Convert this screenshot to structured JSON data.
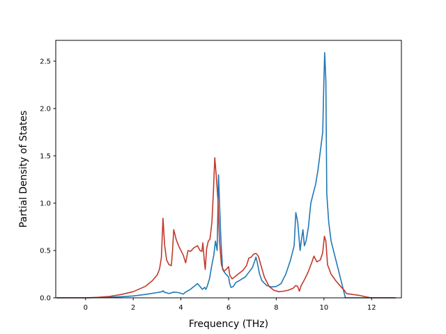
{
  "chart_data": {
    "type": "line",
    "xlabel": "Frequency (THz)",
    "ylabel": "Partial Density of States",
    "xlim": [
      -1.25,
      13.25
    ],
    "ylim": [
      0,
      2.72
    ],
    "xticks": [
      0,
      2,
      4,
      6,
      8,
      10,
      12
    ],
    "xtick_labels": [
      "0",
      "2",
      "4",
      "6",
      "8",
      "10",
      "12"
    ],
    "yticks": [
      0.0,
      0.5,
      1.0,
      1.5,
      2.0,
      2.5
    ],
    "ytick_labels": [
      "0.0",
      "0.5",
      "1.0",
      "1.5",
      "2.0",
      "2.5"
    ],
    "grid": false,
    "legend": "none",
    "series": [
      {
        "color": "#1f77b4",
        "points": [
          [
            -1.2,
            0.0
          ],
          [
            0.0,
            0.0
          ],
          [
            0.5,
            0.002
          ],
          [
            1.0,
            0.006
          ],
          [
            1.5,
            0.012
          ],
          [
            2.0,
            0.02
          ],
          [
            2.5,
            0.035
          ],
          [
            3.0,
            0.055
          ],
          [
            3.2,
            0.065
          ],
          [
            3.25,
            0.075
          ],
          [
            3.3,
            0.06
          ],
          [
            3.5,
            0.045
          ],
          [
            3.7,
            0.06
          ],
          [
            3.9,
            0.055
          ],
          [
            4.1,
            0.04
          ],
          [
            4.2,
            0.06
          ],
          [
            4.4,
            0.09
          ],
          [
            4.6,
            0.13
          ],
          [
            4.7,
            0.15
          ],
          [
            4.8,
            0.12
          ],
          [
            4.9,
            0.09
          ],
          [
            5.0,
            0.11
          ],
          [
            5.05,
            0.09
          ],
          [
            5.1,
            0.12
          ],
          [
            5.2,
            0.2
          ],
          [
            5.3,
            0.35
          ],
          [
            5.38,
            0.45
          ],
          [
            5.45,
            0.6
          ],
          [
            5.52,
            0.5
          ],
          [
            5.58,
            1.3
          ],
          [
            5.62,
            1.0
          ],
          [
            5.68,
            0.6
          ],
          [
            5.75,
            0.3
          ],
          [
            5.85,
            0.26
          ],
          [
            6.0,
            0.22
          ],
          [
            6.05,
            0.15
          ],
          [
            6.1,
            0.11
          ],
          [
            6.2,
            0.12
          ],
          [
            6.3,
            0.16
          ],
          [
            6.5,
            0.19
          ],
          [
            6.7,
            0.22
          ],
          [
            6.85,
            0.27
          ],
          [
            7.0,
            0.32
          ],
          [
            7.1,
            0.39
          ],
          [
            7.15,
            0.43
          ],
          [
            7.2,
            0.38
          ],
          [
            7.3,
            0.25
          ],
          [
            7.4,
            0.18
          ],
          [
            7.6,
            0.13
          ],
          [
            7.8,
            0.115
          ],
          [
            8.0,
            0.12
          ],
          [
            8.2,
            0.15
          ],
          [
            8.4,
            0.25
          ],
          [
            8.6,
            0.4
          ],
          [
            8.75,
            0.55
          ],
          [
            8.82,
            0.9
          ],
          [
            8.9,
            0.8
          ],
          [
            9.0,
            0.5
          ],
          [
            9.05,
            0.6
          ],
          [
            9.12,
            0.72
          ],
          [
            9.18,
            0.55
          ],
          [
            9.25,
            0.6
          ],
          [
            9.35,
            0.75
          ],
          [
            9.45,
            1.0
          ],
          [
            9.55,
            1.1
          ],
          [
            9.65,
            1.2
          ],
          [
            9.75,
            1.35
          ],
          [
            9.85,
            1.55
          ],
          [
            9.95,
            1.75
          ],
          [
            10.0,
            2.3
          ],
          [
            10.03,
            2.59
          ],
          [
            10.08,
            2.3
          ],
          [
            10.12,
            1.1
          ],
          [
            10.2,
            0.8
          ],
          [
            10.3,
            0.6
          ],
          [
            10.45,
            0.45
          ],
          [
            10.6,
            0.3
          ],
          [
            10.75,
            0.15
          ],
          [
            10.85,
            0.05
          ],
          [
            10.9,
            0.0
          ],
          [
            13.0,
            0.0
          ]
        ]
      },
      {
        "color": "#c0392b",
        "points": [
          [
            -1.2,
            0.0
          ],
          [
            0.0,
            0.0
          ],
          [
            0.5,
            0.005
          ],
          [
            1.0,
            0.015
          ],
          [
            1.5,
            0.035
          ],
          [
            2.0,
            0.065
          ],
          [
            2.5,
            0.12
          ],
          [
            2.8,
            0.18
          ],
          [
            3.0,
            0.24
          ],
          [
            3.1,
            0.3
          ],
          [
            3.18,
            0.42
          ],
          [
            3.25,
            0.84
          ],
          [
            3.32,
            0.55
          ],
          [
            3.4,
            0.4
          ],
          [
            3.5,
            0.35
          ],
          [
            3.6,
            0.34
          ],
          [
            3.65,
            0.5
          ],
          [
            3.7,
            0.72
          ],
          [
            3.8,
            0.62
          ],
          [
            3.9,
            0.55
          ],
          [
            4.0,
            0.5
          ],
          [
            4.1,
            0.45
          ],
          [
            4.2,
            0.37
          ],
          [
            4.3,
            0.5
          ],
          [
            4.4,
            0.49
          ],
          [
            4.55,
            0.53
          ],
          [
            4.7,
            0.55
          ],
          [
            4.8,
            0.5
          ],
          [
            4.88,
            0.49
          ],
          [
            4.92,
            0.58
          ],
          [
            4.98,
            0.4
          ],
          [
            5.02,
            0.3
          ],
          [
            5.08,
            0.52
          ],
          [
            5.15,
            0.6
          ],
          [
            5.22,
            0.62
          ],
          [
            5.3,
            0.8
          ],
          [
            5.36,
            1.1
          ],
          [
            5.42,
            1.48
          ],
          [
            5.48,
            1.3
          ],
          [
            5.55,
            1.05
          ],
          [
            5.62,
            0.6
          ],
          [
            5.7,
            0.35
          ],
          [
            5.8,
            0.28
          ],
          [
            5.9,
            0.3
          ],
          [
            6.0,
            0.33
          ],
          [
            6.05,
            0.24
          ],
          [
            6.15,
            0.2
          ],
          [
            6.3,
            0.23
          ],
          [
            6.45,
            0.26
          ],
          [
            6.6,
            0.29
          ],
          [
            6.75,
            0.34
          ],
          [
            6.85,
            0.42
          ],
          [
            6.95,
            0.43
          ],
          [
            7.05,
            0.46
          ],
          [
            7.15,
            0.47
          ],
          [
            7.25,
            0.44
          ],
          [
            7.35,
            0.35
          ],
          [
            7.5,
            0.22
          ],
          [
            7.7,
            0.12
          ],
          [
            7.9,
            0.08
          ],
          [
            8.1,
            0.065
          ],
          [
            8.3,
            0.07
          ],
          [
            8.5,
            0.08
          ],
          [
            8.7,
            0.1
          ],
          [
            8.82,
            0.13
          ],
          [
            8.9,
            0.12
          ],
          [
            8.97,
            0.07
          ],
          [
            9.05,
            0.13
          ],
          [
            9.2,
            0.2
          ],
          [
            9.35,
            0.28
          ],
          [
            9.5,
            0.38
          ],
          [
            9.58,
            0.44
          ],
          [
            9.7,
            0.38
          ],
          [
            9.85,
            0.4
          ],
          [
            9.95,
            0.48
          ],
          [
            10.02,
            0.65
          ],
          [
            10.08,
            0.6
          ],
          [
            10.15,
            0.35
          ],
          [
            10.3,
            0.25
          ],
          [
            10.5,
            0.18
          ],
          [
            10.7,
            0.12
          ],
          [
            10.85,
            0.08
          ],
          [
            10.95,
            0.045
          ],
          [
            11.2,
            0.035
          ],
          [
            11.5,
            0.025
          ],
          [
            11.8,
            0.008
          ],
          [
            12.0,
            0.0
          ],
          [
            13.0,
            0.0
          ]
        ]
      }
    ]
  }
}
